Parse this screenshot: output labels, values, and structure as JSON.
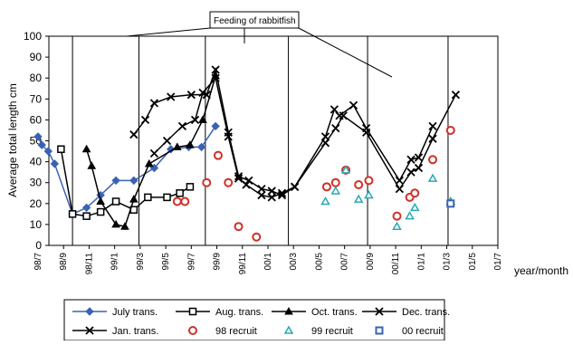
{
  "chart_data": {
    "type": "line",
    "ylabel": "Average total length cm",
    "xlabel": "year/month",
    "ylim": [
      0,
      100
    ],
    "yticks": [
      0,
      10,
      20,
      30,
      40,
      50,
      60,
      70,
      80,
      90,
      100
    ],
    "xticks": [
      "98/7",
      "98/9",
      "98/11",
      "99/1",
      "99/3",
      "99/5",
      "99/7",
      "99/9",
      "99/11",
      "00/1",
      "00/3",
      "00/5",
      "00/7",
      "00/9",
      "00/11",
      "01/1",
      "01/3",
      "01/5",
      "01/7"
    ],
    "grid": false,
    "legend_position": "bottom",
    "annotation": "Feeding of rabbitfish",
    "series": [
      {
        "name": "July trans.",
        "color": "#3a62b4",
        "marker": "diamond",
        "x": [
          0,
          0.15,
          0.4,
          0.65,
          1.35,
          1.9,
          2.45,
          3.05,
          3.75,
          4.55,
          5.2,
          5.9,
          6.4,
          6.95
        ],
        "y": [
          52,
          48,
          45,
          39,
          15,
          18,
          24,
          31,
          31,
          37,
          46,
          47,
          47,
          57
        ]
      },
      {
        "name": "Aug. trans.",
        "color": "#000000",
        "marker": "square",
        "x": [
          0.9,
          1.35,
          1.9,
          2.45,
          3.05,
          3.75,
          4.3,
          5.05,
          5.55,
          5.95
        ],
        "y": [
          46,
          15,
          14,
          16,
          21,
          17,
          23,
          23,
          25,
          28
        ]
      },
      {
        "name": "Oct. trans.",
        "color": "#000000",
        "marker": "triangle",
        "x": [
          1.9,
          2.1,
          2.45,
          3.05,
          3.4,
          3.75,
          4.35,
          5.45,
          5.95,
          6.45,
          6.95
        ],
        "y": [
          46,
          38,
          21,
          10,
          9,
          22,
          39,
          47,
          48,
          60,
          81
        ]
      },
      {
        "name": "Dec. trans.",
        "color": "#000000",
        "marker": "x",
        "x": [
          4.55,
          5.05,
          5.65,
          6.15,
          6.45,
          6.95,
          7.45,
          7.85,
          8.15,
          8.75,
          9.15,
          9.55,
          10.05,
          11.25,
          11.6,
          11.8,
          12.35,
          12.85,
          14.15,
          14.6,
          14.9,
          15.45
        ],
        "y": [
          44,
          50,
          57,
          60,
          73,
          80,
          52,
          32,
          29,
          24,
          23,
          25,
          28,
          52,
          65,
          62,
          67,
          56,
          31,
          41,
          42,
          57
        ]
      },
      {
        "name": "Jan. trans.",
        "color": "#000000",
        "marker": "x",
        "x": [
          3.75,
          4.2,
          4.55,
          5.2,
          6.0,
          6.6,
          6.95,
          7.45,
          7.85,
          8.25,
          8.75,
          9.15,
          9.55,
          10.05,
          11.25,
          11.65,
          11.95,
          12.85,
          14.15,
          14.6,
          14.9,
          15.45,
          16.35
        ],
        "y": [
          53,
          60,
          68,
          71,
          72,
          72,
          84,
          54,
          33,
          31,
          27,
          26,
          24,
          28,
          49,
          56,
          62,
          54,
          27,
          35,
          37,
          51,
          72
        ]
      },
      {
        "name": "98 recruit",
        "color": "#d03028",
        "marker": "circle",
        "x": [
          5.45,
          5.75,
          6.6,
          7.05,
          7.45,
          7.85,
          8.55,
          11.3,
          11.65,
          12.05,
          12.55,
          12.95,
          14.05,
          14.55,
          14.75,
          15.45,
          16.15
        ],
        "y": [
          21,
          21,
          30,
          43,
          30,
          9,
          4,
          28,
          30,
          36,
          29,
          31,
          14,
          23,
          25,
          41,
          55
        ]
      },
      {
        "name": "99 recruit",
        "color": "#28a8b4",
        "marker": "triangle-open",
        "x": [
          11.25,
          11.65,
          12.05,
          12.55,
          12.95,
          14.05,
          14.55,
          14.75,
          15.45,
          16.15
        ],
        "y": [
          21,
          26,
          36,
          22,
          24,
          9,
          14,
          18,
          32,
          21
        ]
      },
      {
        "name": "00 recruit",
        "color": "#3a62b4",
        "marker": "square-open",
        "x": [
          16.15
        ],
        "y": [
          20
        ]
      }
    ]
  }
}
